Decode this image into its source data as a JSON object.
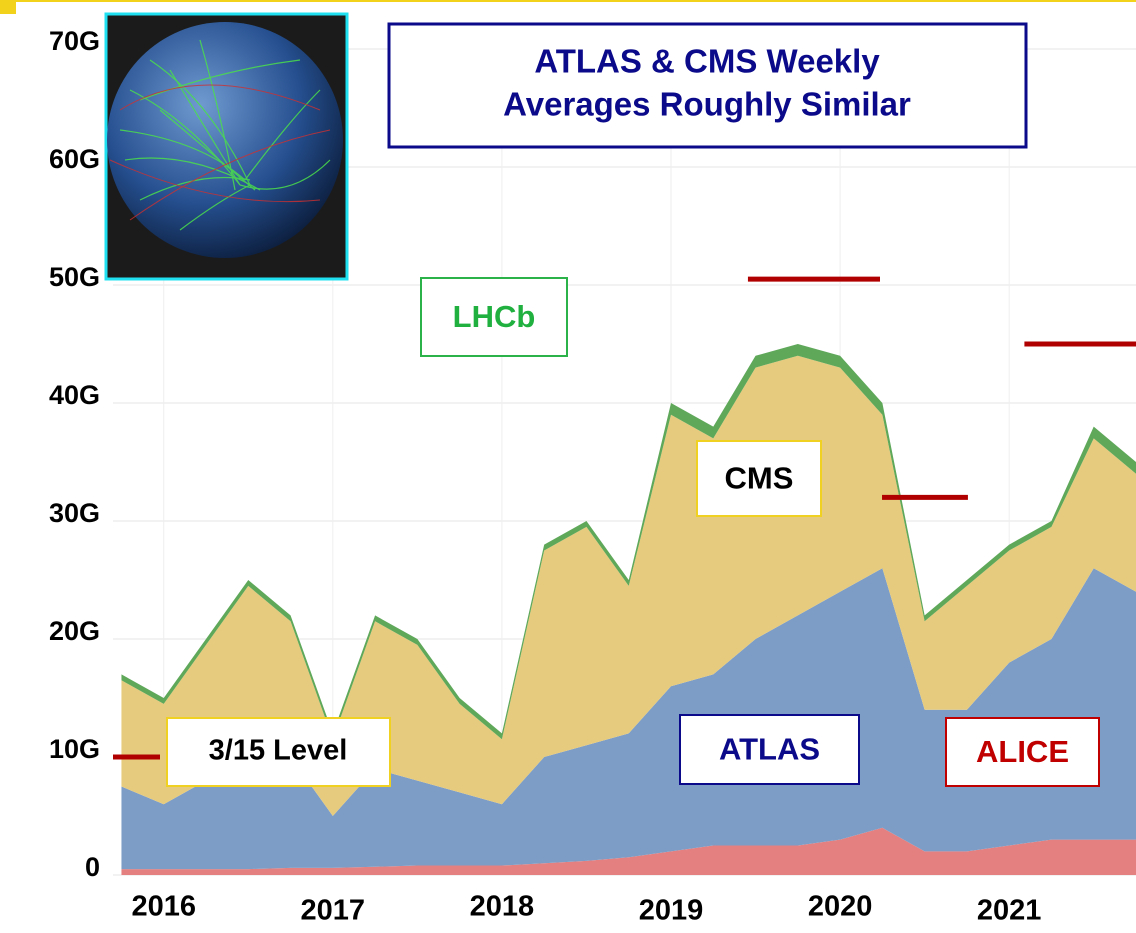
{
  "chart_data": {
    "type": "stacked-area",
    "title": [
      "ATLAS & CMS Weekly",
      "Averages Roughly Similar"
    ],
    "x": [
      2015.75,
      2016,
      2016.25,
      2016.5,
      2016.75,
      2017,
      2017.25,
      2017.5,
      2017.75,
      2018,
      2018.25,
      2018.5,
      2018.75,
      2019,
      2019.25,
      2019.5,
      2019.75,
      2020,
      2020.25,
      2020.5,
      2020.75,
      2021,
      2021.25,
      2021.5,
      2021.75
    ],
    "series": [
      {
        "name": "ALICE",
        "color": "#e58080",
        "values": [
          0.5,
          0.5,
          0.5,
          0.5,
          0.6,
          0.6,
          0.7,
          0.8,
          0.8,
          0.8,
          1,
          1.2,
          1.5,
          2,
          2.5,
          2.5,
          2.5,
          3,
          4,
          2,
          2,
          2.5,
          3,
          3,
          3
        ]
      },
      {
        "name": "ATLAS",
        "color": "#7d9dc6",
        "values": [
          7,
          5.5,
          7.5,
          9.5,
          9.4,
          4.4,
          8.3,
          7.2,
          6.2,
          5.2,
          9,
          9.8,
          10.5,
          14,
          14.5,
          17.5,
          19.5,
          21,
          22,
          12,
          12,
          15.5,
          17,
          23,
          21
        ]
      },
      {
        "name": "CMS",
        "color": "#e6cb7e",
        "values": [
          9,
          8.5,
          11.5,
          14.5,
          11.5,
          6.5,
          12.5,
          11.5,
          7.5,
          5.5,
          17.5,
          18.5,
          12.5,
          23,
          20,
          23,
          22,
          19,
          13,
          7.5,
          10.5,
          9.5,
          9.5,
          11,
          10
        ]
      },
      {
        "name": "LHCb",
        "color": "#5fa85a",
        "values": [
          0.5,
          0.5,
          0.5,
          0.5,
          0.5,
          0.5,
          0.5,
          0.5,
          0.5,
          0.5,
          0.5,
          0.5,
          0.5,
          1,
          1,
          1,
          1,
          1,
          1,
          0.5,
          0.5,
          0.5,
          0.5,
          1,
          1
        ]
      }
    ],
    "xlim": [
      2015.7,
      2021.75
    ],
    "xticks": [
      2016,
      2017,
      2018,
      2019,
      2020,
      2021
    ],
    "ylim": [
      0,
      70
    ],
    "yticks": [
      0,
      {
        "value": 10,
        "label": "10G"
      },
      {
        "value": 20,
        "label": "20G"
      },
      {
        "value": 30,
        "label": "30G"
      },
      {
        "value": 40,
        "label": "40G"
      },
      {
        "value": 50,
        "label": "50G"
      },
      {
        "value": 60,
        "label": "60G"
      },
      {
        "value": 70,
        "label": "70G"
      }
    ],
    "grid": true,
    "reference_lines": [
      {
        "value": 10,
        "x": [
          2015.7,
          2015.978
        ],
        "label": "3/15 Level"
      },
      {
        "value": 50.5,
        "x": [
          2019.455,
          2020.236
        ]
      },
      {
        "value": 32,
        "x": [
          2020.248,
          2020.756
        ]
      },
      {
        "value": 45,
        "x": [
          2021.09,
          2021.75
        ]
      }
    ]
  }
}
